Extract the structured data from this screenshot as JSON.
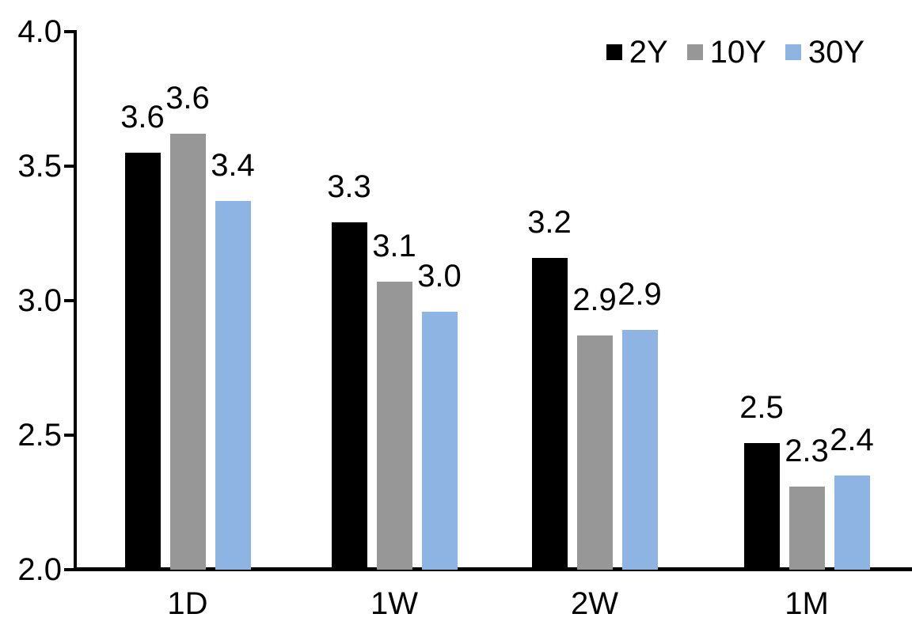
{
  "chart_data": {
    "type": "bar",
    "title": "",
    "categories": [
      "1D",
      "1W",
      "2W",
      "1M"
    ],
    "series": [
      {
        "name": "2Y",
        "color": "#000000",
        "values": [
          3.6,
          3.3,
          3.2,
          2.5
        ],
        "data_labels": [
          "3.6",
          "3.3",
          "3.2",
          "2.5"
        ],
        "bar_heights": [
          3.55,
          3.29,
          3.16,
          2.47
        ]
      },
      {
        "name": "10Y",
        "color": "#979797",
        "values": [
          3.6,
          3.1,
          2.9,
          2.3
        ],
        "data_labels": [
          "3.6",
          "3.1",
          "2.9",
          "2.3"
        ],
        "bar_heights": [
          3.62,
          3.07,
          2.87,
          2.31
        ]
      },
      {
        "name": "30Y",
        "color": "#8DB4E2",
        "values": [
          3.4,
          3.0,
          2.9,
          2.4
        ],
        "data_labels": [
          "3.4",
          "3.0",
          "2.9",
          "2.4"
        ],
        "bar_heights": [
          3.37,
          2.96,
          2.89,
          2.35
        ]
      }
    ],
    "ylim": [
      2.0,
      4.0
    ],
    "ytick_labels": [
      "4.0",
      "3.5",
      "3.0",
      "2.5",
      "2.0"
    ],
    "xlabel": "",
    "ylabel": "",
    "legend_position": "top-right",
    "grid": false,
    "axis_color": "#000000",
    "background_color": "#ffffff"
  }
}
